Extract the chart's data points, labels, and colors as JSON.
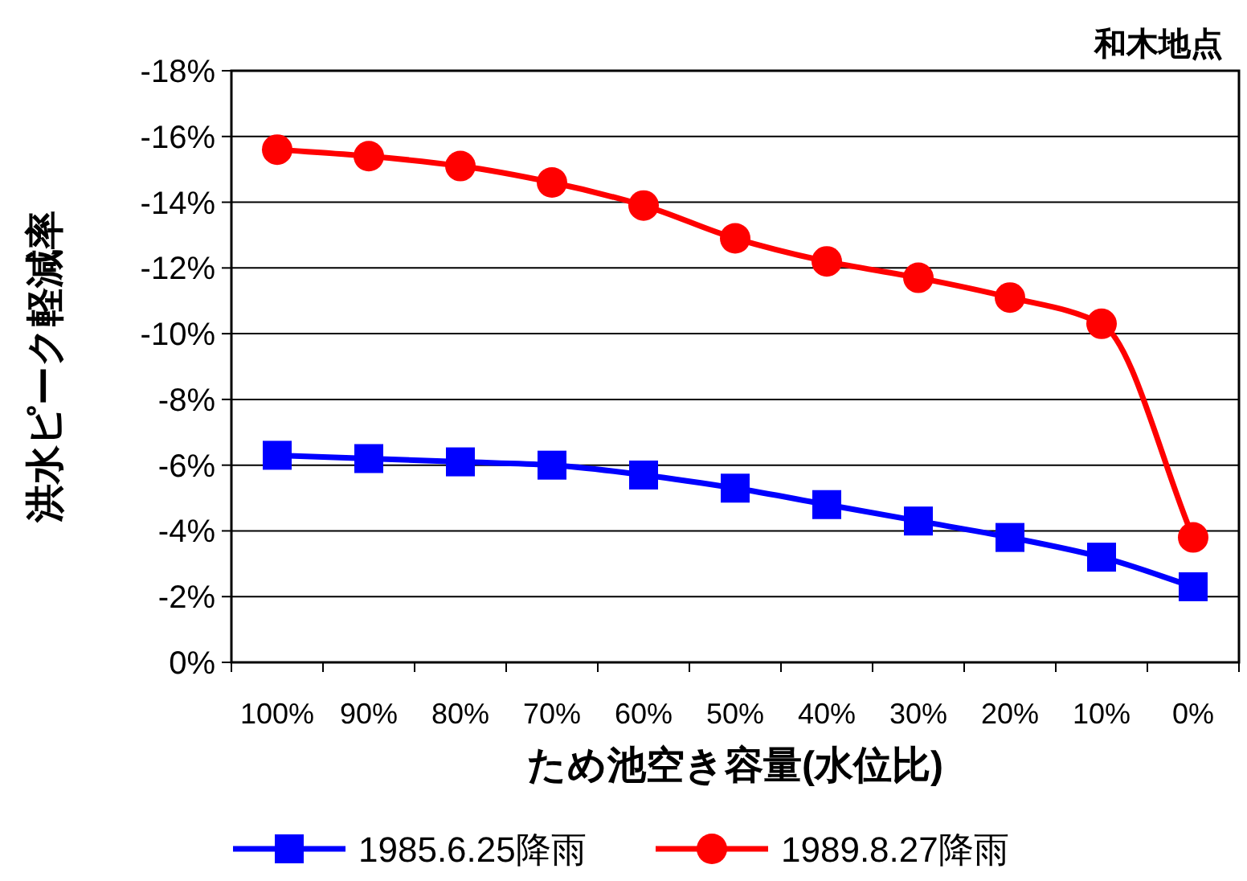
{
  "chart_data": {
    "type": "line",
    "title": "和木地点",
    "xlabel": "ため池空き容量(水位比)",
    "ylabel": "洪水ピーク軽減率",
    "categories": [
      "100%",
      "90%",
      "80%",
      "70%",
      "60%",
      "50%",
      "40%",
      "30%",
      "20%",
      "10%",
      "0%"
    ],
    "series": [
      {
        "name": "1985.6.25降雨",
        "color": "#0000ff",
        "marker": "square",
        "values": [
          -6.3,
          -6.2,
          -6.1,
          -6.0,
          -5.7,
          -5.3,
          -4.8,
          -4.3,
          -3.8,
          -3.2,
          -2.3
        ]
      },
      {
        "name": "1989.8.27降雨",
        "color": "#ff0000",
        "marker": "circle",
        "values": [
          -15.6,
          -15.4,
          -15.1,
          -14.6,
          -13.9,
          -12.9,
          -12.2,
          -11.7,
          -11.1,
          -10.3,
          -3.8
        ]
      }
    ],
    "ylim": [
      0,
      -18
    ],
    "yticks": [
      {
        "value": 0,
        "label": "0%"
      },
      {
        "value": -2,
        "label": "-2%"
      },
      {
        "value": -4,
        "label": "-4%"
      },
      {
        "value": -6,
        "label": "-6%"
      },
      {
        "value": -8,
        "label": "-8%"
      },
      {
        "value": -10,
        "label": "-10%"
      },
      {
        "value": -12,
        "label": "-12%"
      },
      {
        "value": -14,
        "label": "-14%"
      },
      {
        "value": -16,
        "label": "-16%"
      },
      {
        "value": -18,
        "label": "-18%"
      }
    ],
    "grid": "y",
    "legend": "bottom",
    "line_style": "solid"
  }
}
